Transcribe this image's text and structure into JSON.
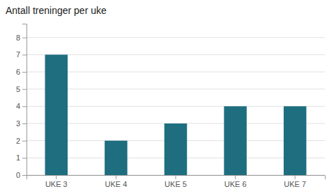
{
  "chart_data": {
    "type": "bar",
    "title": "Antall treninger per uke",
    "categories": [
      "UKE 3",
      "UKE 4",
      "UKE 5",
      "UKE 6",
      "UKE 7"
    ],
    "values": [
      7,
      2,
      3,
      4,
      4
    ],
    "color": "#1e6e80",
    "ylim": [
      0,
      8.8
    ],
    "yticks": [
      0,
      1,
      2,
      3,
      4,
      5,
      6,
      7,
      8
    ],
    "grid": true
  }
}
